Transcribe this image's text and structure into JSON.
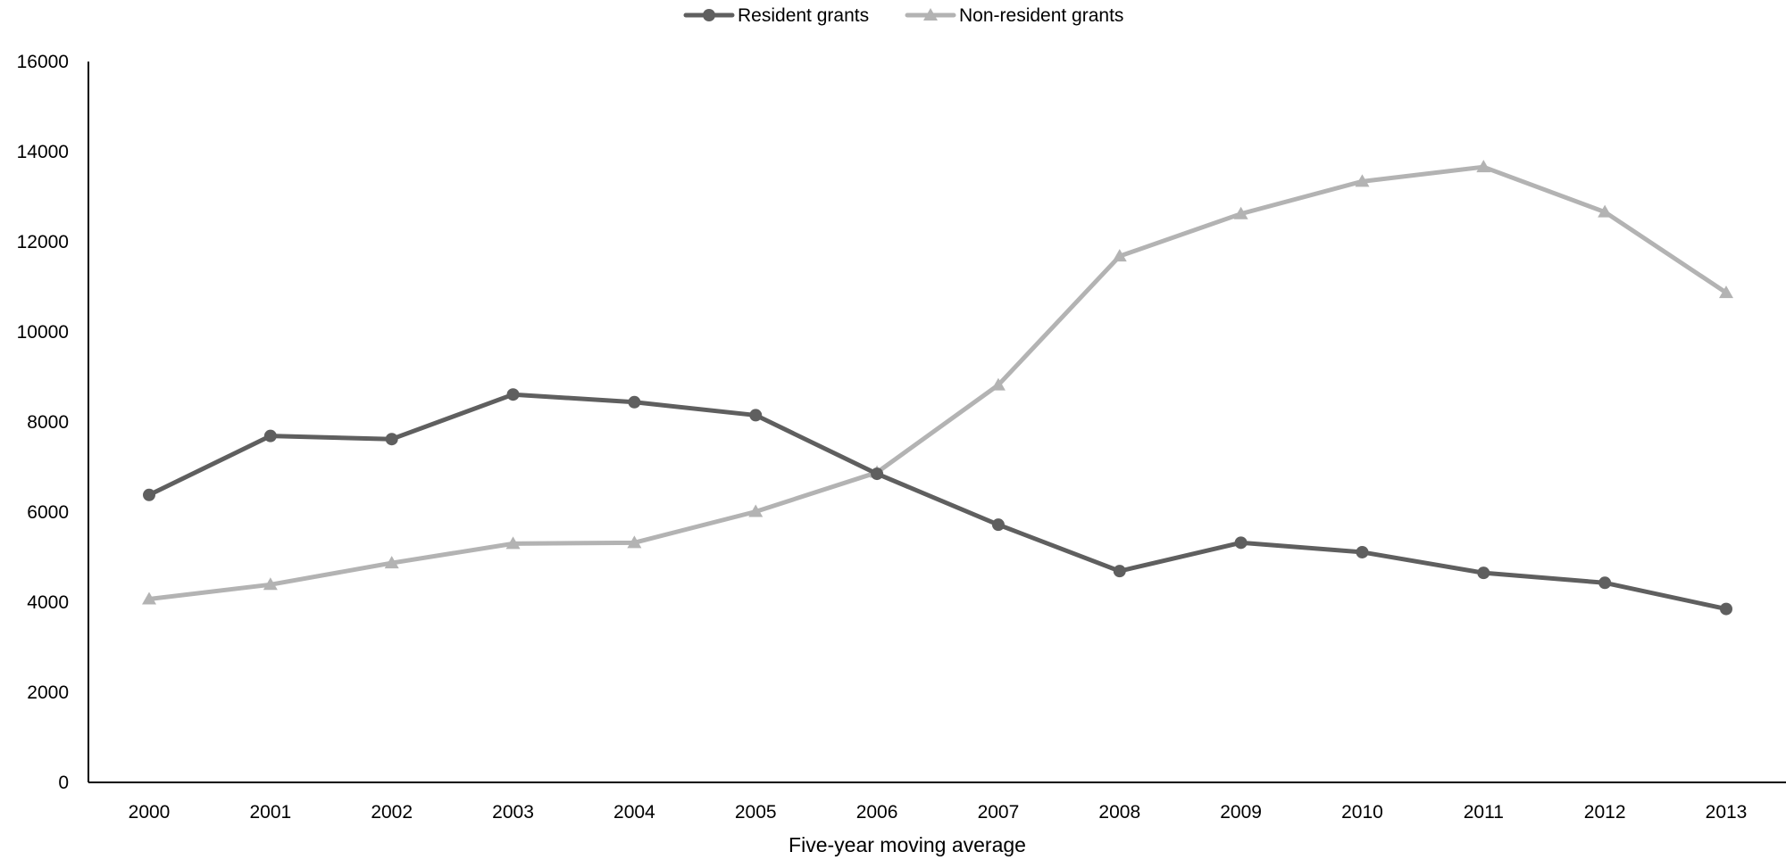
{
  "chart_data": {
    "type": "line",
    "title": "",
    "xlabel": "Five-year moving average",
    "ylabel": "",
    "categories": [
      "2000",
      "2001",
      "2002",
      "2003",
      "2004",
      "2005",
      "2006",
      "2007",
      "2008",
      "2009",
      "2010",
      "2011",
      "2012",
      "2013"
    ],
    "yticks": [
      "0",
      "2000",
      "4000",
      "6000",
      "8000",
      "10000",
      "12000",
      "14000",
      "16000"
    ],
    "ylim": [
      0,
      16000
    ],
    "grid": false,
    "legend": "top-center",
    "series": [
      {
        "name": "Resident grants",
        "marker": "circle",
        "color": "#5f5f5f",
        "values": [
          6380,
          7690,
          7620,
          8610,
          8440,
          8150,
          6850,
          5720,
          4690,
          5320,
          5110,
          4650,
          4430,
          3850
        ]
      },
      {
        "name": "Non-resident grants",
        "marker": "triangle",
        "color": "#b3b3b3",
        "values": [
          4070,
          4390,
          4870,
          5300,
          5320,
          6010,
          6880,
          8820,
          11680,
          12620,
          13340,
          13660,
          12660,
          10870
        ]
      }
    ]
  }
}
